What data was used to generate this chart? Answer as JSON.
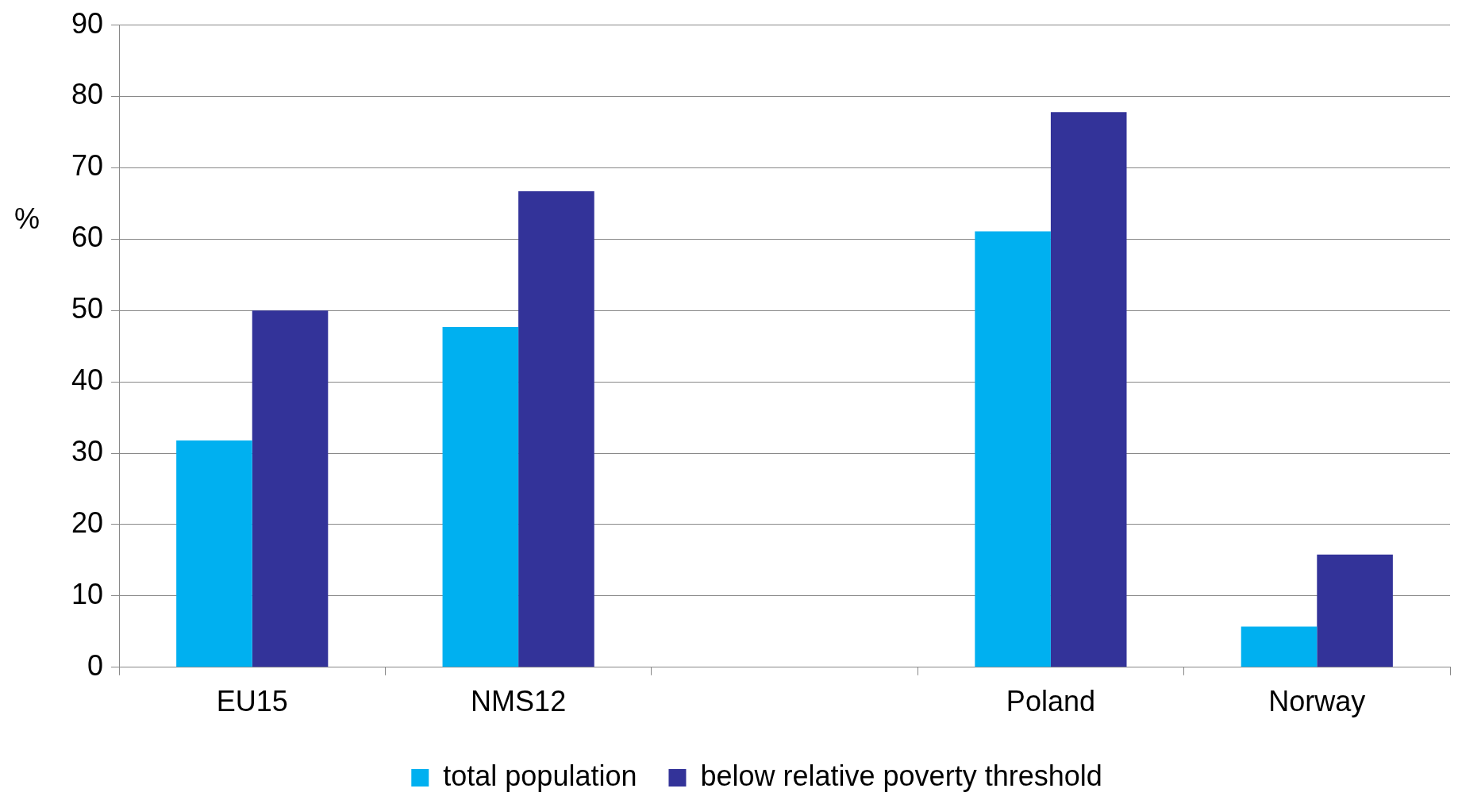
{
  "chart_data": {
    "type": "bar",
    "ylabel": "%",
    "categories": [
      "EU15",
      "NMS12",
      null,
      "Poland",
      "Norway"
    ],
    "series": [
      {
        "name": "total population",
        "color": "#00b0f0",
        "values": [
          31.8,
          47.7,
          null,
          61.1,
          5.7
        ]
      },
      {
        "name": "below relative poverty threshold",
        "color": "#333399",
        "values": [
          50.0,
          66.7,
          null,
          77.8,
          15.8
        ]
      }
    ],
    "ylim": [
      0,
      90
    ],
    "yticks": [
      0,
      10,
      20,
      30,
      40,
      50,
      60,
      70,
      80,
      90
    ],
    "grid": "y",
    "legend": "bottom"
  }
}
